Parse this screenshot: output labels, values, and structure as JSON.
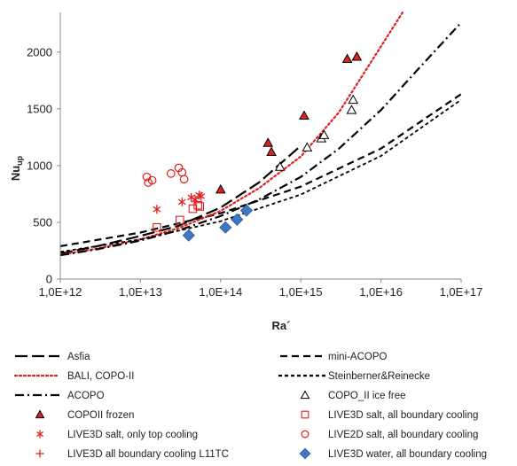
{
  "chart_data": {
    "type": "scatter",
    "xlabel": "Ra´",
    "ylabel": "Nu",
    "ylabel_sub": "up",
    "xscale": "log",
    "xlim": [
      1000000000000.0,
      1e+17
    ],
    "ylim": [
      0,
      2350
    ],
    "grid": false,
    "legend_placement": "bottom",
    "x_ticks": [
      1000000000000.0,
      10000000000000.0,
      100000000000000.0,
      1000000000000000.0,
      1e+16,
      1e+17
    ],
    "x_tick_labels": [
      "1,0E+12",
      "1,0E+13",
      "1,0E+14",
      "1,0E+15",
      "1,0E+16",
      "1,0E+17"
    ],
    "y_ticks": [
      0,
      500,
      1000,
      1500,
      2000
    ],
    "y_tick_labels": [
      "0",
      "500",
      "1000",
      "1500",
      "2000"
    ],
    "series": [
      {
        "name": "Asfia",
        "kind": "line",
        "style": "longdash",
        "color": "#000000",
        "x": [
          1000000000000.0,
          3000000000000.0,
          10000000000000.0,
          30000000000000.0,
          100000000000000.0,
          300000000000000.0,
          1000000000000000.0
        ],
        "y": [
          225,
          292,
          380,
          470,
          630,
          850,
          1175
        ]
      },
      {
        "name": "mini-ACOPO",
        "kind": "line",
        "style": "dash",
        "color": "#000000",
        "x": [
          1000000000000.0,
          10000000000000.0,
          100000000000000.0,
          1000000000000000.0,
          1e+16,
          1e+17
        ],
        "y": [
          290,
          410,
          580,
          815,
          1150,
          1630
        ]
      },
      {
        "name": "BALI, COPO-II",
        "kind": "line",
        "style": "dot",
        "color": "#e02020",
        "x": [
          1000000000000.0,
          3000000000000.0,
          10000000000000.0,
          30000000000000.0,
          100000000000000.0,
          300000000000000.0,
          1000000000000000.0,
          3000000000000000.0,
          1e+16,
          1.86e+16
        ],
        "y": [
          215,
          270,
          350,
          450,
          600,
          800,
          1080,
          1470,
          2050,
          2350
        ]
      },
      {
        "name": "Steinberner&Reinecke",
        "kind": "line",
        "style": "shortdash",
        "color": "#000000",
        "x": [
          1000000000000.0,
          10000000000000.0,
          100000000000000.0,
          1000000000000000.0,
          1e+16,
          1e+17
        ],
        "y": [
          240,
          350,
          510,
          745,
          1085,
          1580
        ]
      },
      {
        "name": "ACOPO",
        "kind": "line",
        "style": "dashdot",
        "color": "#000000",
        "x": [
          1000000000000.0,
          3000000000000.0,
          10000000000000.0,
          30000000000000.0,
          100000000000000.0,
          300000000000000.0,
          1000000000000000.0,
          3000000000000000.0,
          1e+16,
          3e+16,
          1e+17
        ],
        "y": [
          210,
          265,
          340,
          430,
          555,
          700,
          900,
          1150,
          1490,
          1860,
          2260
        ]
      },
      {
        "name": "COPO_II ice free",
        "kind": "marker",
        "marker": "triangle-open",
        "color": "#000000",
        "x": [
          550000000000000.0,
          1200000000000000.0,
          1800000000000000.0,
          1950000000000000.0,
          4300000000000000.0,
          4500000000000000.0
        ],
        "y": [
          990,
          1160,
          1240,
          1270,
          1490,
          1580
        ]
      },
      {
        "name": "COPOII frozen",
        "kind": "marker",
        "marker": "triangle-filled",
        "color": "#e02020",
        "x": [
          100000000000000.0,
          390000000000000.0,
          430000000000000.0,
          1100000000000000.0,
          3800000000000000.0,
          5000000000000000.0
        ],
        "y": [
          790,
          1200,
          1120,
          1440,
          1940,
          1960
        ]
      },
      {
        "name": "LIVE3D salt, all boundary cooling",
        "kind": "marker",
        "marker": "square-open",
        "color": "#e02020",
        "x": [
          16000000000000.0,
          31000000000000.0,
          45000000000000.0,
          52000000000000.0,
          55000000000000.0
        ],
        "y": [
          455,
          520,
          620,
          650,
          640
        ]
      },
      {
        "name": "LIVE3D salt, only top cooling",
        "kind": "marker",
        "marker": "asterisk",
        "color": "#e02020",
        "x": [
          16000000000000.0,
          33000000000000.0,
          43000000000000.0,
          48000000000000.0,
          54000000000000.0,
          57000000000000.0
        ],
        "y": [
          615,
          680,
          720,
          700,
          740,
          730
        ]
      },
      {
        "name": "LIVE2D salt, all boundary cooling",
        "kind": "marker",
        "marker": "circle-open",
        "color": "#e02020",
        "x": [
          12000000000000.0,
          12500000000000.0,
          14000000000000.0,
          24000000000000.0,
          30000000000000.0,
          33000000000000.0,
          35000000000000.0
        ],
        "y": [
          900,
          850,
          870,
          930,
          980,
          940,
          880
        ]
      },
      {
        "name": "LIVE3D all boundary cooling L11TC",
        "kind": "marker",
        "marker": "plus",
        "color": "#e02020",
        "x": [],
        "y": []
      },
      {
        "name": "LIVE3D water, all boundary cooling",
        "kind": "marker",
        "marker": "diamond-filled",
        "color": "#3d78c0",
        "x": [
          40000000000000.0,
          115000000000000.0,
          160000000000000.0,
          210000000000000.0
        ],
        "y": [
          385,
          455,
          525,
          605
        ]
      }
    ],
    "legend": [
      {
        "key": "Asfia",
        "label": "Asfia"
      },
      {
        "key": "mini-ACOPO",
        "label": "mini-ACOPO"
      },
      {
        "key": "BALI, COPO-II",
        "label": "BALI, COPO-II"
      },
      {
        "key": "Steinberner&Reinecke",
        "label": "Steinberner&Reinecke"
      },
      {
        "key": "ACOPO",
        "label": "ACOPO"
      },
      {
        "key": "COPO_II ice free",
        "label": "COPO_II ice free"
      },
      {
        "key": "COPOII frozen",
        "label": "COPOII frozen"
      },
      {
        "key": "LIVE3D salt, all boundary cooling",
        "label": "LIVE3D salt, all boundary cooling"
      },
      {
        "key": "LIVE3D salt, only top cooling",
        "label": "LIVE3D salt, only top cooling"
      },
      {
        "key": "LIVE2D salt, all boundary cooling",
        "label": "LIVE2D salt, all boundary cooling"
      },
      {
        "key": "LIVE3D all boundary cooling L11TC",
        "label": "LIVE3D all boundary cooling L11TC"
      },
      {
        "key": "LIVE3D water, all boundary cooling",
        "label": "LIVE3D water, all boundary cooling"
      }
    ]
  }
}
